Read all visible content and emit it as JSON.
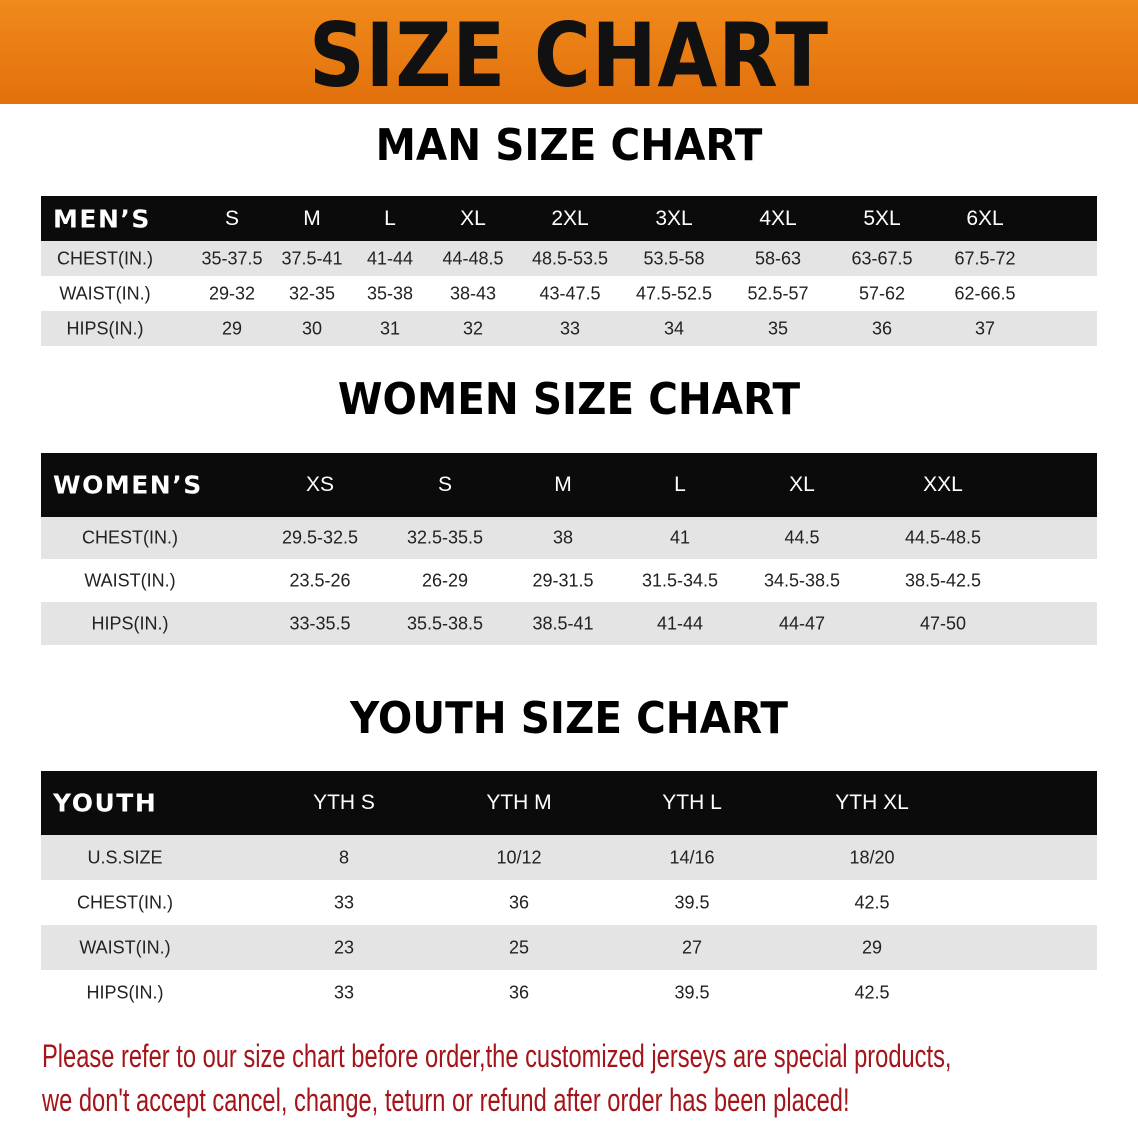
{
  "banner_title": "SIZE CHART",
  "men": {
    "title": "MAN SIZE CHART",
    "header": [
      "MEN’S",
      "S",
      "M",
      "L",
      "XL",
      "2XL",
      "3XL",
      "4XL",
      "5XL",
      "6XL"
    ],
    "rows": [
      [
        "CHEST(IN.)",
        "35-37.5",
        "37.5-41",
        "41-44",
        "44-48.5",
        "48.5-53.5",
        "53.5-58",
        "58-63",
        "63-67.5",
        "67.5-72"
      ],
      [
        "WAIST(IN.)",
        "29-32",
        "32-35",
        "35-38",
        "38-43",
        "43-47.5",
        "47.5-52.5",
        "52.5-57",
        "57-62",
        "62-66.5"
      ],
      [
        "HIPS(IN.)",
        "29",
        "30",
        "31",
        "32",
        "33",
        "34",
        "35",
        "36",
        "37"
      ]
    ]
  },
  "women": {
    "title": "WOMEN SIZE CHART",
    "header": [
      "WOMEN’S",
      "XS",
      "S",
      "M",
      "L",
      "XL",
      "XXL"
    ],
    "rows": [
      [
        "CHEST(IN.)",
        "29.5-32.5",
        "32.5-35.5",
        "38",
        "41",
        "44.5",
        "44.5-48.5"
      ],
      [
        "WAIST(IN.)",
        "23.5-26",
        "26-29",
        "29-31.5",
        "31.5-34.5",
        "34.5-38.5",
        "38.5-42.5"
      ],
      [
        "HIPS(IN.)",
        "33-35.5",
        "35.5-38.5",
        "38.5-41",
        "41-44",
        "44-47",
        "47-50"
      ]
    ]
  },
  "youth": {
    "title": "YOUTH SIZE CHART",
    "header": [
      "YOUTH",
      "YTH S",
      "YTH M",
      "YTH L",
      "YTH XL"
    ],
    "rows": [
      [
        "U.S.SIZE",
        "8",
        "10/12",
        "14/16",
        "18/20"
      ],
      [
        "CHEST(IN.)",
        "33",
        "36",
        "39.5",
        "42.5"
      ],
      [
        "WAIST(IN.)",
        "23",
        "25",
        "27",
        "29"
      ],
      [
        "HIPS(IN.)",
        "33",
        "36",
        "39.5",
        "42.5"
      ]
    ]
  },
  "footer": {
    "line1": "Please refer to our size chart before order,the customized jerseys are special products,",
    "line2": "we don't accept cancel, change, teturn or refund after order has been placed!"
  },
  "colors": {
    "banner": "#e8760f",
    "header_row": "#0b0b0b",
    "stripe": "#e4e4e4",
    "footer_text": "#a3151a"
  }
}
